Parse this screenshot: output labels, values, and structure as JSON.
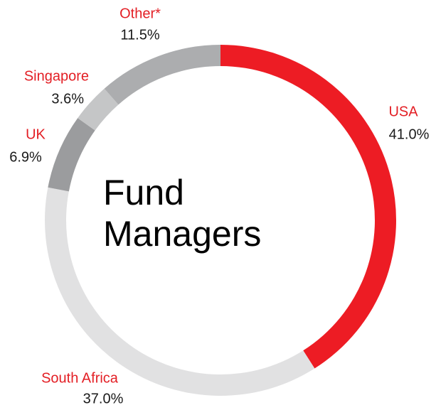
{
  "chart_data": {
    "type": "donut",
    "title": "Fund Managers",
    "categories": [
      "USA",
      "South Africa",
      "UK",
      "Singapore",
      "Other*"
    ],
    "values": [
      41.0,
      37.0,
      6.9,
      3.6,
      11.5
    ],
    "value_labels": [
      "41.0%",
      "37.0%",
      "6.9%",
      "3.6%",
      "11.5%"
    ],
    "colors": [
      "#ed1c24",
      "#e1e1e2",
      "#9b9c9e",
      "#c5c6c7",
      "#acadaf"
    ]
  }
}
